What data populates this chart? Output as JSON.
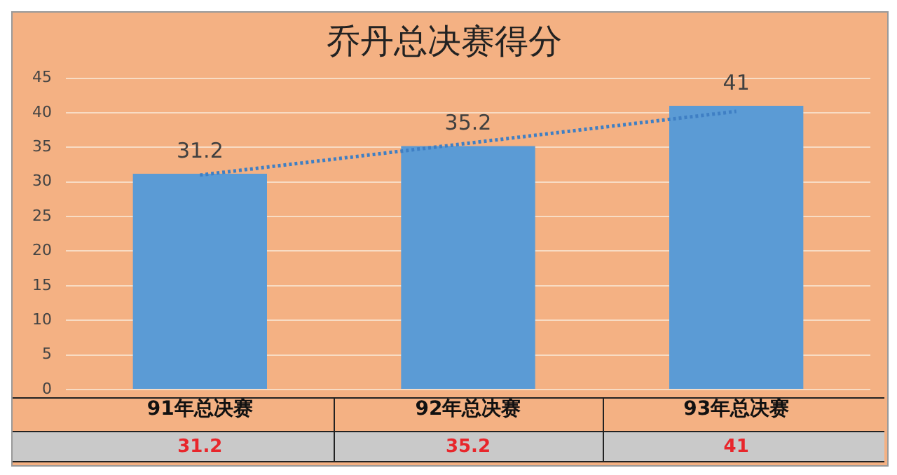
{
  "chart_data": {
    "type": "bar",
    "title": "乔丹总决赛得分",
    "categories": [
      "91年总决赛",
      "92年总决赛",
      "93年总决赛"
    ],
    "series": [
      {
        "color": "#5b9bd5",
        "values": [
          31.2,
          35.2,
          41
        ],
        "value_labels": [
          "31.2",
          "35.2",
          "41"
        ]
      },
      {
        "type": "line",
        "color": "#3f7fc4",
        "line_style": "dotted",
        "marker": "none",
        "x": [
          "91年总决赛",
          "92年总决赛",
          "93年总决赛"
        ],
        "values": [
          31,
          35.6,
          40.2
        ]
      }
    ],
    "ylim": [
      0,
      45
    ],
    "yticks": [
      0,
      5,
      10,
      15,
      20,
      25,
      30,
      35,
      40,
      45
    ],
    "grid": "y",
    "legend": false
  }
}
